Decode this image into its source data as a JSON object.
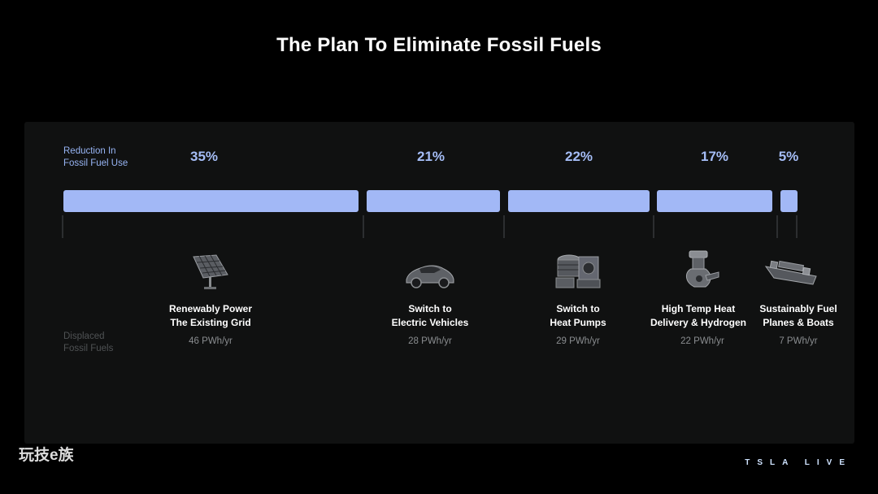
{
  "title": "The Plan To Eliminate Fossil Fuels",
  "labels": {
    "reduction_line1": "Reduction In",
    "reduction_line2": "Fossil Fuel Use",
    "displaced_line1": "Displaced",
    "displaced_line2": "Fossil Fuels"
  },
  "colors": {
    "accent": "#a2b8f6",
    "label_blue": "#97b4f4",
    "panel": "#101111",
    "background": "#000000"
  },
  "segments": [
    {
      "pct": "35%",
      "share": 0.35,
      "line1": "Renewably Power",
      "line2": "The Existing Grid",
      "value": "46 PWh/yr",
      "icon": "solar-panel-icon"
    },
    {
      "pct": "21%",
      "share": 0.21,
      "line1": "Switch to",
      "line2": "Electric Vehicles",
      "value": "28 PWh/yr",
      "icon": "electric-car-icon"
    },
    {
      "pct": "22%",
      "share": 0.22,
      "line1": "Switch to",
      "line2": "Heat Pumps",
      "value": "29 PWh/yr",
      "icon": "heat-pump-icon"
    },
    {
      "pct": "17%",
      "share": 0.17,
      "line1": "High Temp Heat",
      "line2": "Delivery & Hydrogen",
      "value": "22 PWh/yr",
      "icon": "industrial-furnace-icon"
    },
    {
      "pct": "5%",
      "share": 0.05,
      "line1": "Sustainably Fuel",
      "line2": "Planes & Boats",
      "value": "7 PWh/yr",
      "icon": "cargo-ship-icon"
    }
  ],
  "watermark": "玩技e族",
  "brand": "TSLA LIVE"
}
